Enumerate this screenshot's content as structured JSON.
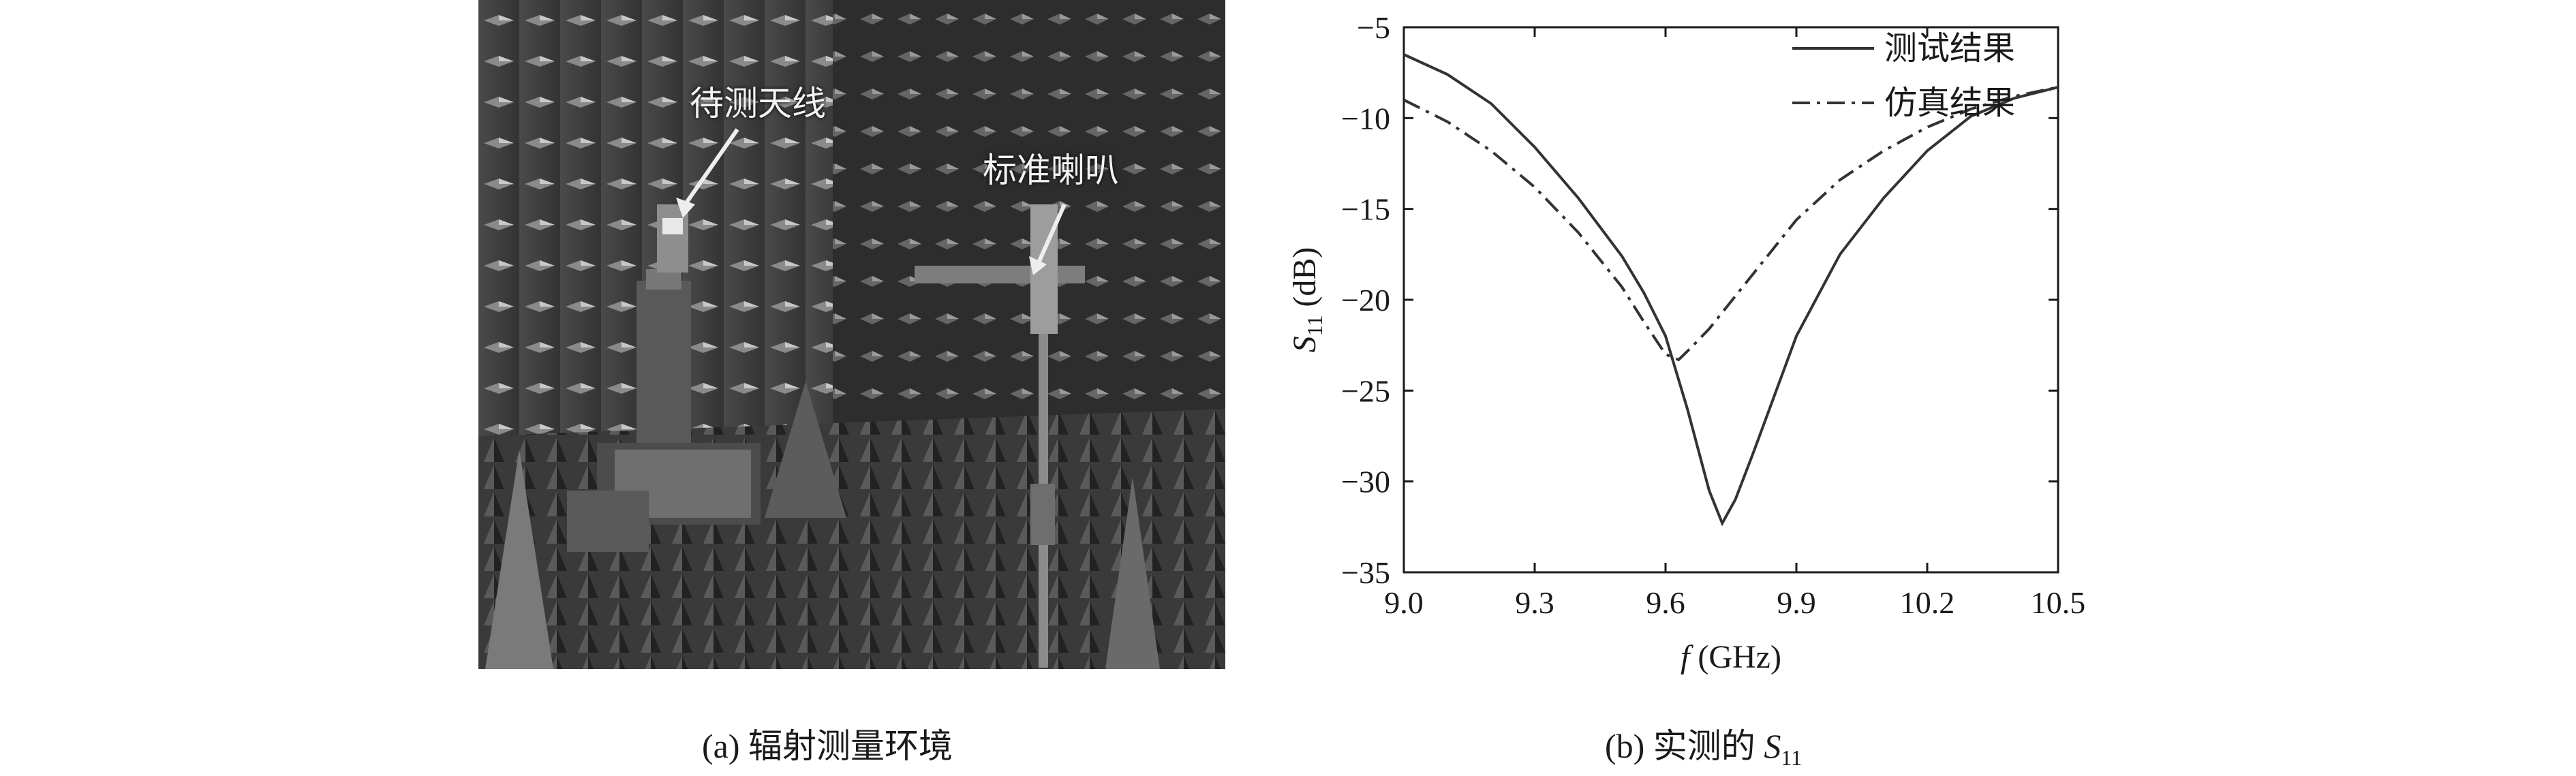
{
  "figure_a": {
    "label_antenna": "待测天线",
    "label_horn": "标准喇叭",
    "caption": "(a) 辐射测量环境"
  },
  "figure_b": {
    "caption_prefix": "(b) 实测的",
    "caption_symbol": "S",
    "caption_subscript": "11"
  },
  "chart_data": {
    "type": "line",
    "xlabel": "f (GHz)",
    "ylabel": "S11 (dB)",
    "xlim": [
      9.0,
      10.5
    ],
    "ylim": [
      -35,
      -5
    ],
    "xticks": [
      "9.0",
      "9.3",
      "9.6",
      "9.9",
      "10.2",
      "10.5"
    ],
    "yticks": [
      "-5",
      "-10",
      "-15",
      "-20",
      "-25",
      "-30",
      "-35"
    ],
    "legend_position": "top-right",
    "grid": false,
    "series": [
      {
        "name": "测试结果",
        "style": "solid",
        "x": [
          9.0,
          9.1,
          9.2,
          9.3,
          9.4,
          9.5,
          9.55,
          9.6,
          9.65,
          9.7,
          9.73,
          9.76,
          9.8,
          9.9,
          10.0,
          10.1,
          10.2,
          10.3,
          10.4,
          10.5
        ],
        "y": [
          -6.5,
          -7.6,
          -9.2,
          -11.6,
          -14.4,
          -17.6,
          -19.6,
          -22.0,
          -26.0,
          -30.5,
          -32.3,
          -31.0,
          -28.5,
          -22.0,
          -17.5,
          -14.4,
          -11.8,
          -9.9,
          -8.9,
          -8.3
        ]
      },
      {
        "name": "仿真结果",
        "style": "dashdot",
        "x": [
          9.0,
          9.1,
          9.2,
          9.3,
          9.4,
          9.5,
          9.55,
          9.6,
          9.63,
          9.66,
          9.7,
          9.8,
          9.9,
          10.0,
          10.1,
          10.2,
          10.3,
          10.4,
          10.5
        ],
        "y": [
          -9.0,
          -10.2,
          -11.8,
          -13.8,
          -16.3,
          -19.3,
          -21.2,
          -23.0,
          -23.3,
          -22.6,
          -21.6,
          -18.6,
          -15.6,
          -13.4,
          -11.8,
          -10.5,
          -9.5,
          -8.8,
          -8.3
        ]
      }
    ]
  }
}
